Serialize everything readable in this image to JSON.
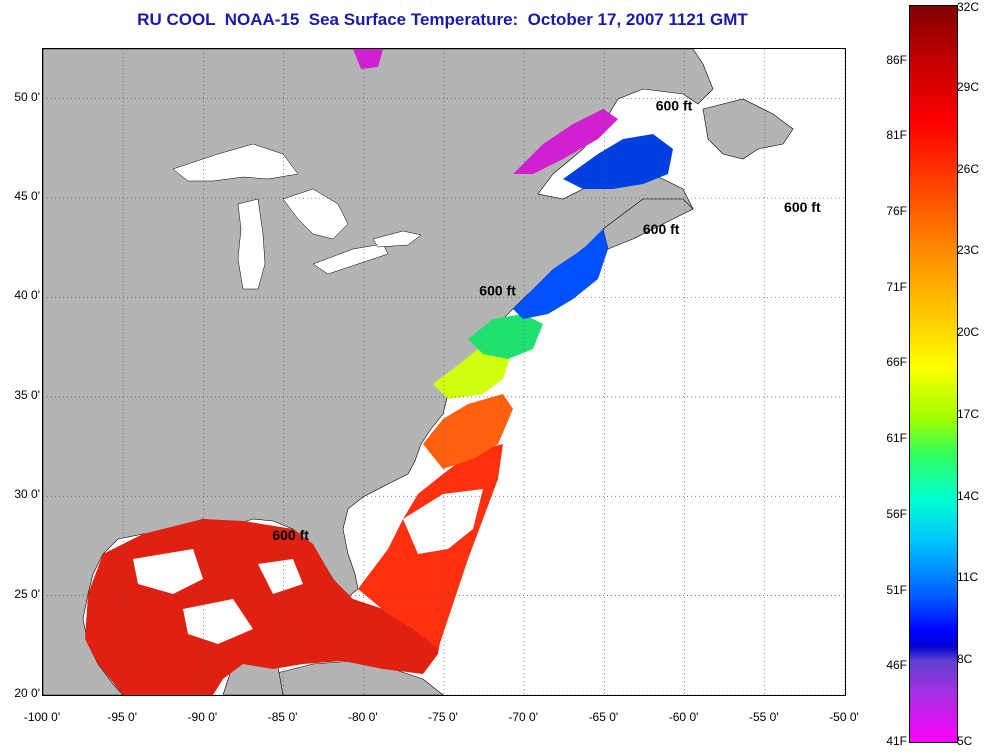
{
  "title": "RU COOL  NOAA-15  Sea Surface Temperature:  October 17, 2007 1121 GMT",
  "map": {
    "lon_range": [
      -100,
      -50
    ],
    "lat_range": [
      20,
      52.5
    ],
    "lat_ticks": [
      "20 0'",
      "25 0'",
      "30 0'",
      "35 0'",
      "40 0'",
      "45 0'",
      "50 0'"
    ],
    "lat_values": [
      20,
      25,
      30,
      35,
      40,
      45,
      50
    ],
    "lon_ticks": [
      "-100 0'",
      "-95 0'",
      "-90 0'",
      "-85 0'",
      "-80 0'",
      "-75 0'",
      "-70 0'",
      "-65 0'",
      "-60 0'",
      "-55 0'",
      "-50 0'"
    ],
    "lon_values": [
      -100,
      -95,
      -90,
      -85,
      -80,
      -75,
      -70,
      -65,
      -60,
      -55,
      -50
    ],
    "grid": true,
    "land_color": "#b4b4b4",
    "ocean_color": "#ffffff",
    "contour_labels": [
      {
        "text": "600 ft",
        "lon": -85.7,
        "lat": 27.8
      },
      {
        "text": "600 ft",
        "lon": -72.8,
        "lat": 40.1
      },
      {
        "text": "600 ft",
        "lon": -61.8,
        "lat": 49.4
      },
      {
        "text": "600 ft",
        "lon": -62.6,
        "lat": 43.2
      },
      {
        "text": "600 ft",
        "lon": -53.8,
        "lat": 44.3
      }
    ]
  },
  "colorbar": {
    "celsius_labels": [
      "32C",
      "29C",
      "26C",
      "23C",
      "20C",
      "17C",
      "14C",
      "11C",
      "8C",
      "5C"
    ],
    "celsius_values": [
      32,
      29,
      26,
      23,
      20,
      17,
      14,
      11,
      8,
      5
    ],
    "fahrenheit_labels": [
      "86F",
      "81F",
      "76F",
      "71F",
      "66F",
      "61F",
      "56F",
      "51F",
      "46F",
      "41F"
    ],
    "fahrenheit_values": [
      86,
      81,
      76,
      71,
      66,
      61,
      56,
      51,
      46,
      41
    ],
    "range_c": [
      5,
      32
    ]
  }
}
